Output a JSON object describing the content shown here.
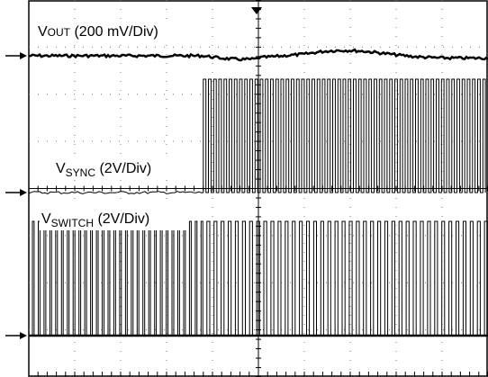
{
  "chart_data": {
    "type": "line",
    "description_grid": {
      "h_divisions": 10,
      "v_divisions": 8,
      "minor_ticks_per_division": 5
    },
    "channels": [
      {
        "name_main": "V",
        "name_sub": "OUT",
        "scale": "(200 mV/Div)",
        "label_style": "smallcaps-sub"
      },
      {
        "name_main": "V",
        "name_sub": "SYNC",
        "scale": "(2V/Div)",
        "label_style": "subscript"
      },
      {
        "name_main": "V",
        "name_sub": "SWITCH",
        "scale": "(2V/Div)",
        "label_style": "subscript"
      }
    ],
    "trigger_marker": "top-center",
    "sync_start_fraction": 0.38,
    "switch_pulse_count_before_sync": 30,
    "switch_pulse_count_after_sync": 40,
    "sync_pulse_count": 55
  }
}
